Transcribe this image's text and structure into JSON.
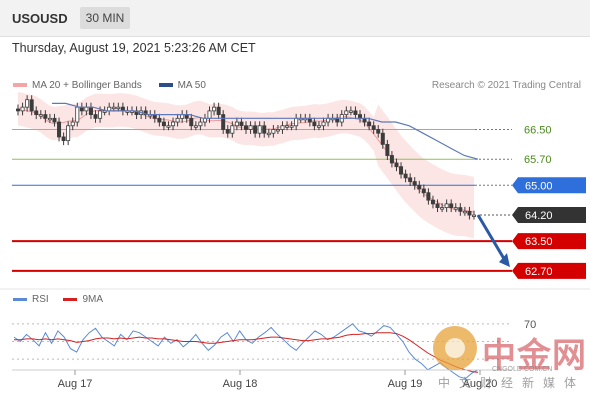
{
  "header": {
    "symbol": "USOUSD",
    "timeframe": "30 MIN"
  },
  "datetime": "Thursday, August 19, 2021 5:23:26 AM CET",
  "legend": {
    "items": [
      {
        "label": "MA 20 + Bollinger Bands",
        "color": "#f4a6a6"
      },
      {
        "label": "MA 50",
        "color": "#2c4f8a"
      }
    ],
    "copyright": "Research © 2021 Trading Central"
  },
  "rsi_legend": {
    "items": [
      {
        "label": "RSI",
        "color": "#5a8ad6"
      },
      {
        "label": "9MA",
        "color": "#d62020"
      }
    ]
  },
  "watermark": {
    "name": "中金网",
    "url": "CNGOLD.COM.CN",
    "tagline": "中文财经新媒体"
  },
  "colors": {
    "level_green": "#8fc255",
    "level_blue": "#2e6fdc",
    "level_red": "#d40000",
    "current_price": "#333333",
    "band_fill": "#fbe0e0",
    "ma50": "#5d79b8",
    "candle": "#3c3c3c",
    "arrow": "#2a5aa6"
  },
  "chart_data": [
    {
      "type": "candlestick",
      "ylim": [
        62.4,
        67.4
      ],
      "x_tick_labels": [
        "Aug 17",
        "Aug 18",
        "Aug 19",
        "Aug 20"
      ],
      "price_levels": [
        {
          "value": 66.5,
          "label": "66.50",
          "style": "green-line"
        },
        {
          "value": 65.7,
          "label": "65.70",
          "style": "green-line"
        },
        {
          "value": 65.0,
          "label": "65.00",
          "style": "blue-line"
        },
        {
          "value": 64.2,
          "label": "64.20",
          "style": "current-price"
        },
        {
          "value": 63.5,
          "label": "63.50",
          "style": "red-line"
        },
        {
          "value": 62.7,
          "label": "62.70",
          "style": "red-line"
        }
      ],
      "close_series": [
        67.0,
        67.1,
        67.3,
        67.0,
        66.9,
        66.9,
        66.8,
        66.8,
        66.7,
        66.3,
        66.2,
        66.6,
        66.7,
        67.1,
        67.0,
        67.1,
        66.9,
        66.8,
        67.0,
        67.0,
        67.1,
        67.1,
        67.1,
        67.0,
        67.0,
        67.0,
        66.9,
        67.0,
        66.9,
        66.9,
        66.8,
        66.7,
        66.6,
        66.6,
        66.7,
        66.8,
        66.9,
        66.8,
        66.6,
        66.6,
        66.7,
        66.8,
        67.0,
        67.1,
        66.9,
        66.5,
        66.4,
        66.6,
        66.7,
        66.6,
        66.5,
        66.6,
        66.4,
        66.6,
        66.4,
        66.4,
        66.5,
        66.5,
        66.6,
        66.6,
        66.6,
        66.8,
        66.8,
        66.8,
        66.7,
        66.6,
        66.6,
        66.7,
        66.8,
        66.8,
        66.7,
        66.9,
        67.0,
        67.0,
        66.9,
        66.8,
        66.7,
        66.6,
        66.5,
        66.4,
        66.1,
        65.8,
        65.6,
        65.5,
        65.3,
        65.2,
        65.1,
        65.0,
        64.9,
        64.8,
        64.6,
        64.5,
        64.4,
        64.4,
        64.5,
        64.4,
        64.4,
        64.3,
        64.3,
        64.2,
        64.2
      ],
      "ma50": [
        67.2,
        67.2,
        67.1,
        67.1,
        67.0,
        67.0,
        67.0,
        66.9,
        66.9,
        66.9,
        66.9,
        66.8,
        66.8,
        66.8,
        66.8,
        66.8,
        66.8,
        66.8,
        66.8,
        66.8,
        66.8,
        66.8,
        66.8,
        66.8,
        66.7,
        66.7,
        66.6,
        66.4,
        66.2,
        66.0,
        65.8,
        65.7
      ],
      "projection": {
        "from": 64.2,
        "to": 62.8
      }
    },
    {
      "type": "line",
      "series": [
        {
          "name": "RSI",
          "color": "#5a8ad6"
        },
        {
          "name": "9MA",
          "color": "#d62020"
        }
      ],
      "ylim": [
        0,
        100
      ],
      "y_tick_labels": [
        "70"
      ],
      "rsi": [
        55,
        50,
        58,
        52,
        45,
        60,
        48,
        62,
        55,
        42,
        38,
        52,
        60,
        65,
        55,
        50,
        45,
        58,
        52,
        62,
        60,
        55,
        50,
        45,
        55,
        48,
        52,
        44,
        50,
        58,
        48,
        40,
        46,
        55,
        60,
        50,
        62,
        52,
        48,
        55,
        60,
        66,
        58,
        52,
        45,
        40,
        48,
        55,
        62,
        58,
        52,
        55,
        60,
        65,
        70,
        62,
        60,
        56,
        62,
        68,
        66,
        58,
        50,
        38,
        30,
        25,
        18,
        22,
        26,
        20,
        15,
        10,
        8,
        14,
        18
      ],
      "ma9": [
        52,
        52,
        53,
        53,
        52,
        53,
        52,
        53,
        52,
        51,
        49,
        50,
        51,
        53,
        54,
        54,
        53,
        54,
        53,
        54,
        55,
        54,
        54,
        53,
        53,
        52,
        51,
        50,
        50,
        50,
        49,
        48,
        48,
        49,
        50,
        51,
        52,
        52,
        52,
        53,
        54,
        55,
        55,
        54,
        53,
        52,
        51,
        51,
        52,
        53,
        53,
        54,
        55,
        57,
        58,
        58,
        59,
        59,
        60,
        60,
        60,
        59,
        56,
        52,
        47,
        42,
        37,
        33,
        29,
        26,
        23,
        20,
        18,
        16,
        15
      ]
    }
  ]
}
